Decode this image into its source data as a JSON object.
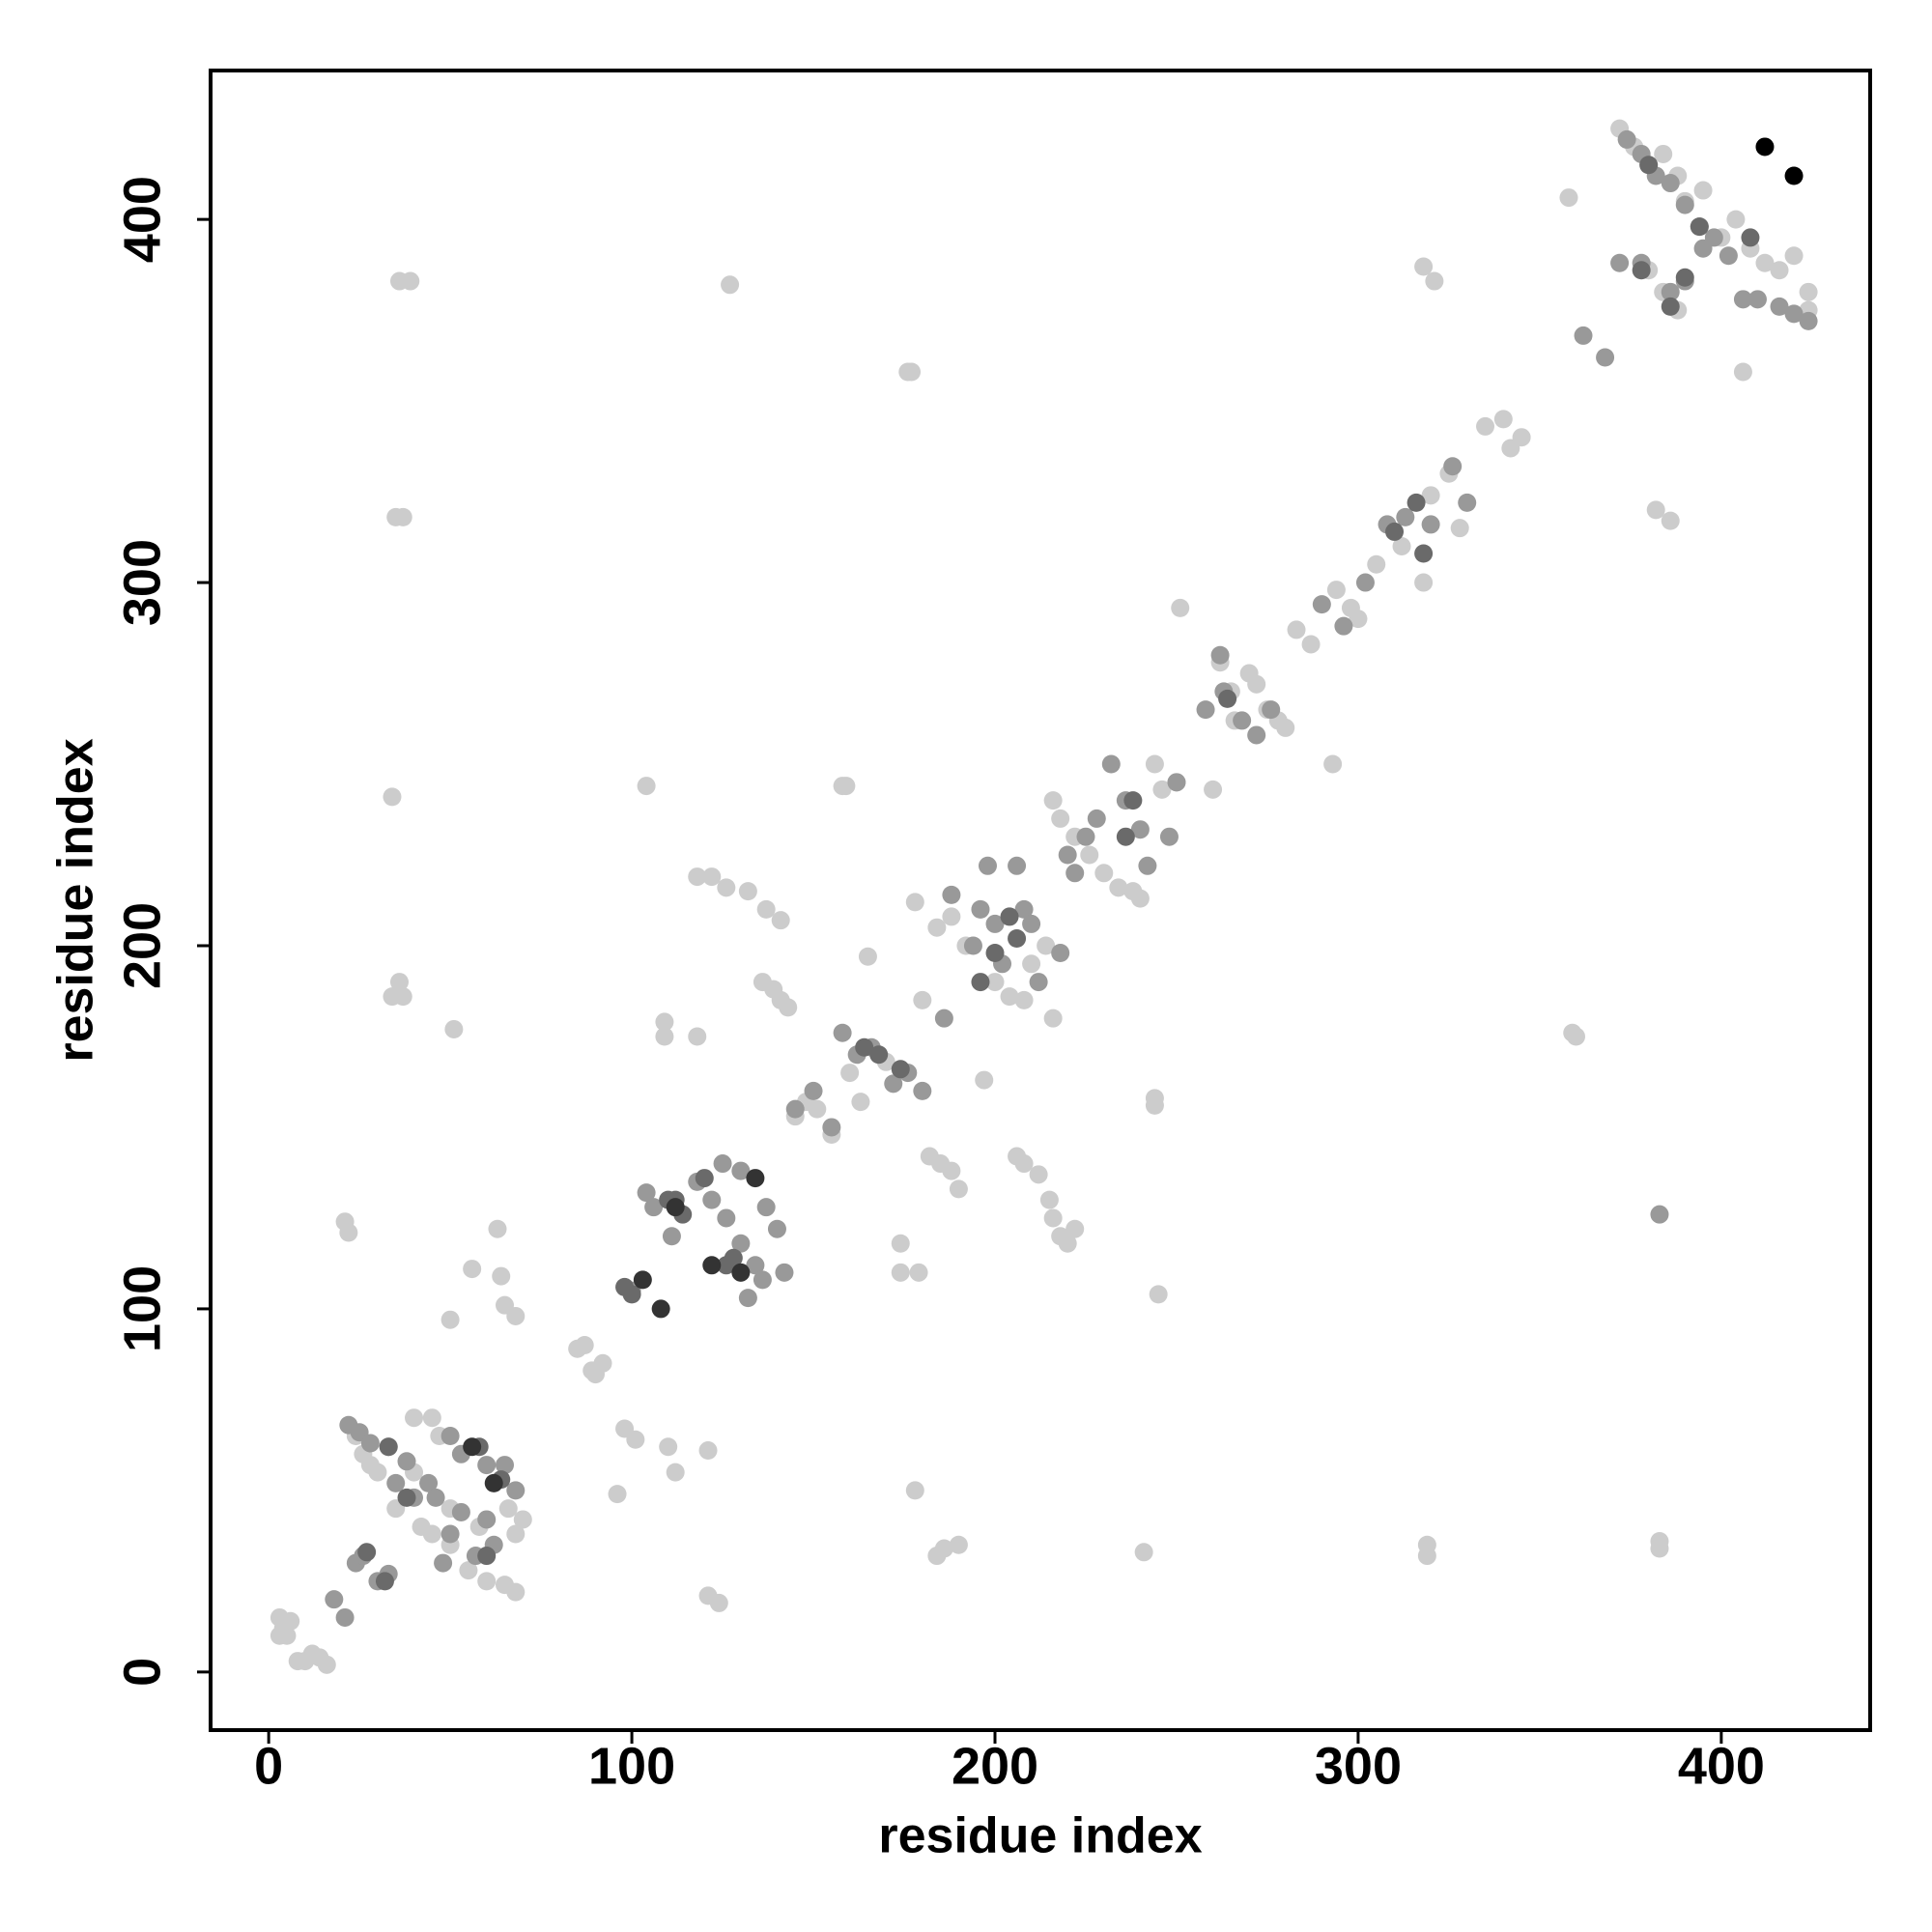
{
  "chart_data": {
    "type": "scatter",
    "x_label": "residue index",
    "y_label": "residue index",
    "xlim": [
      -16,
      441
    ],
    "ylim": [
      -16,
      441
    ],
    "xticks": [
      0,
      100,
      200,
      300,
      400
    ],
    "yticks": [
      0,
      100,
      200,
      300,
      400
    ],
    "grid": false,
    "series": [
      {
        "color": "#cccccc",
        "x": [
          3,
          4,
          5,
          6,
          8,
          10,
          12,
          14,
          16,
          3,
          36,
          39,
          35,
          37,
          34,
          34,
          36,
          37,
          51,
          21,
          22,
          63,
          50,
          56,
          64,
          65,
          68,
          24,
          26,
          28,
          30,
          40,
          45,
          47,
          40,
          35,
          45,
          50,
          55,
          60,
          65,
          68,
          70,
          68,
          42,
          50,
          58,
          66,
          85,
          87,
          89,
          92,
          90,
          96,
          98,
          101,
          110,
          112,
          121,
          121,
          124,
          109,
          109,
          118,
          118,
          122,
          126,
          132,
          137,
          141,
          136,
          139,
          141,
          143,
          104,
          127,
          159,
          158,
          165,
          176,
          177,
          174,
          179,
          174,
          178,
          145,
          148,
          151,
          155,
          160,
          163,
          170,
          182,
          185,
          188,
          190,
          184,
          186,
          190,
          206,
          208,
          212,
          215,
          216,
          218,
          220,
          222,
          197,
          244,
          244,
          245,
          241,
          180,
          184,
          188,
          192,
          196,
          200,
          204,
          208,
          210,
          214,
          216,
          216,
          218,
          222,
          226,
          230,
          234,
          238,
          240,
          244,
          246,
          250,
          178,
          260,
          262,
          265,
          270,
          275,
          278,
          280,
          272,
          266,
          251,
          283,
          287,
          294,
          298,
          300,
          305,
          312,
          318,
          318,
          321,
          320,
          325,
          328,
          335,
          340,
          342,
          345,
          293,
          359,
          360,
          319,
          319,
          383,
          383,
          358,
          372,
          376,
          380,
          384,
          388,
          390,
          395,
          400,
          404,
          408,
          412,
          416,
          420,
          424,
          424,
          380,
          384,
          388,
          382,
          386,
          406
        ],
        "values": [
          15,
          12,
          10,
          14,
          3,
          3,
          5,
          4,
          2,
          10,
          383,
          383,
          318,
          318,
          241,
          186,
          190,
          186,
          177,
          124,
          121,
          122,
          97,
          111,
          109,
          101,
          98,
          65,
          60,
          57,
          55,
          70,
          70,
          65,
          55,
          45,
          38,
          35,
          28,
          25,
          24,
          22,
          42,
          38,
          40,
          45,
          40,
          45,
          89,
          90,
          83,
          85,
          82,
          49,
          67,
          64,
          62,
          55,
          61,
          21,
          19,
          179,
          175,
          175,
          219,
          219,
          216,
          215,
          210,
          207,
          190,
          188,
          185,
          183,
          244,
          382,
          244,
          244,
          197,
          358,
          358,
          110,
          110,
          118,
          50,
          153,
          157,
          155,
          148,
          165,
          157,
          168,
          142,
          140,
          138,
          133,
          32,
          34,
          35,
          142,
          140,
          137,
          130,
          125,
          120,
          118,
          122,
          163,
          158,
          156,
          104,
          33,
          185,
          205,
          208,
          200,
          210,
          190,
          186,
          185,
          195,
          200,
          180,
          240,
          235,
          230,
          225,
          220,
          216,
          215,
          213,
          250,
          243,
          245,
          212,
          243,
          278,
          270,
          275,
          265,
          262,
          260,
          272,
          262,
          293,
          287,
          283,
          298,
          293,
          290,
          305,
          310,
          300,
          387,
          383,
          324,
          330,
          315,
          343,
          345,
          337,
          340,
          250,
          176,
          175,
          32,
          35,
          34,
          36,
          406,
          425,
          420,
          415,
          418,
          412,
          405,
          408,
          395,
          400,
          392,
          388,
          386,
          390,
          380,
          375,
          386,
          380,
          375,
          320,
          317,
          358
        ]
      },
      {
        "color": "#999999",
        "x": [
          22,
          25,
          28,
          33,
          38,
          44,
          50,
          53,
          60,
          65,
          68,
          40,
          35,
          46,
          53,
          60,
          62,
          57,
          50,
          48,
          24,
          26,
          30,
          33,
          18,
          21,
          100,
          104,
          106,
          111,
          118,
          122,
          126,
          130,
          134,
          136,
          125,
          130,
          137,
          140,
          142,
          132,
          145,
          150,
          155,
          158,
          162,
          166,
          172,
          176,
          180,
          186,
          194,
          196,
          198,
          202,
          206,
          208,
          210,
          212,
          218,
          220,
          222,
          225,
          228,
          232,
          236,
          240,
          242,
          248,
          250,
          200,
          188,
          258,
          263,
          268,
          272,
          276,
          262,
          290,
          296,
          302,
          308,
          313,
          320,
          326,
          330,
          362,
          368,
          374,
          378,
          382,
          386,
          390,
          394,
          398,
          402,
          378,
          386,
          390,
          395,
          406,
          410,
          416,
          420,
          424,
          372,
          383
        ],
        "values": [
          68,
          66,
          63,
          62,
          58,
          52,
          65,
          60,
          57,
          57,
          50,
          48,
          52,
          48,
          44,
          42,
          35,
          32,
          38,
          30,
          30,
          32,
          25,
          27,
          20,
          15,
          105,
          132,
          128,
          120,
          135,
          130,
          125,
          118,
          112,
          108,
          140,
          138,
          128,
          122,
          110,
          103,
          155,
          160,
          150,
          176,
          170,
          172,
          162,
          165,
          160,
          180,
          200,
          210,
          222,
          195,
          222,
          210,
          206,
          190,
          198,
          225,
          220,
          230,
          235,
          250,
          240,
          232,
          222,
          230,
          245,
          206,
          214,
          265,
          270,
          262,
          258,
          265,
          280,
          294,
          288,
          300,
          316,
          318,
          316,
          332,
          322,
          368,
          362,
          422,
          418,
          412,
          410,
          404,
          398,
          395,
          390,
          388,
          380,
          383,
          392,
          378,
          378,
          376,
          374,
          372,
          388,
          126
        ]
      },
      {
        "color": "#6a6a6a",
        "x": [
          33,
          58,
          64,
          32,
          38,
          60,
          27,
          98,
          100,
          110,
          114,
          128,
          112,
          120,
          126,
          164,
          168,
          174,
          196,
          200,
          206,
          204,
          238,
          236,
          264,
          310,
          318,
          316,
          390,
          394,
          386,
          378,
          380,
          408
        ],
        "values": [
          62,
          62,
          53,
          25,
          48,
          32,
          33,
          106,
          104,
          130,
          126,
          114,
          130,
          136,
          112,
          172,
          170,
          166,
          190,
          198,
          202,
          208,
          240,
          230,
          268,
          314,
          308,
          322,
          384,
          398,
          376,
          386,
          415,
          395
        ]
      },
      {
        "color": "#333333",
        "x": [
          103,
          108,
          112,
          130,
          56,
          62,
          134,
          122
        ],
        "values": [
          108,
          100,
          128,
          110,
          62,
          52,
          136,
          112
        ]
      },
      {
        "color": "#000000",
        "x": [
          412,
          420
        ],
        "values": [
          420,
          412
        ]
      }
    ]
  }
}
